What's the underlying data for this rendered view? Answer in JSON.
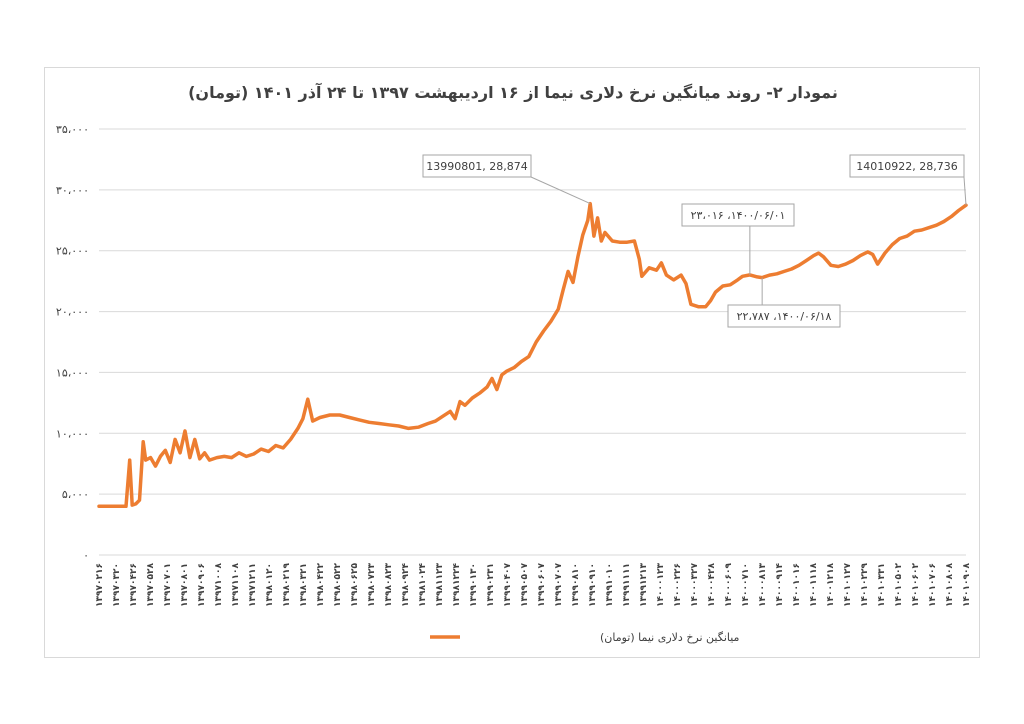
{
  "chart_data": {
    "type": "line",
    "title": "نمودار ۲- روند میانگین نرخ دلاری نیما از ۱۶ اردیبهشت ۱۳۹۷ تا ۲۴ آذر ۱۴۰۱ (تومان)",
    "xlabel": "",
    "ylabel": "",
    "ylim": [
      0,
      35000
    ],
    "grid": true,
    "legend_position": "bottom",
    "y_ticks": [
      {
        "value": 0,
        "label": "۰"
      },
      {
        "value": 5000,
        "label": "۵،۰۰۰"
      },
      {
        "value": 10000,
        "label": "۱۰،۰۰۰"
      },
      {
        "value": 15000,
        "label": "۱۵،۰۰۰"
      },
      {
        "value": 20000,
        "label": "۲۰،۰۰۰"
      },
      {
        "value": 25000,
        "label": "۲۵،۰۰۰"
      },
      {
        "value": 30000,
        "label": "۳۰،۰۰۰"
      },
      {
        "value": 35000,
        "label": "۳۵،۰۰۰"
      }
    ],
    "x_tick_labels": [
      "۱۳۹۷۰۲۱۶",
      "۱۳۹۷۰۳۲۰",
      "۱۳۹۷۰۴۲۶",
      "۱۳۹۷۰۵۲۸",
      "۱۳۹۷۰۷۰۱",
      "۱۳۹۷۰۸۰۱",
      "۱۳۹۷۰۹۰۶",
      "۱۳۹۷۱۰۰۸",
      "۱۳۹۷۱۱۰۸",
      "۱۳۹۷۱۲۱۱",
      "۱۳۹۸۰۱۲۰",
      "۱۳۹۸۰۲۱۹",
      "۱۳۹۸۰۳۲۱",
      "۱۳۹۸۰۴۲۲",
      "۱۳۹۸۰۵۲۲",
      "۱۳۹۸۰۶۲۵",
      "۱۳۹۸۰۷۲۳",
      "۱۳۹۸۰۸۲۳",
      "۱۳۹۸۰۹۲۴",
      "۱۳۹۸۱۰۲۴",
      "۱۳۹۸۱۱۲۳",
      "۱۳۹۸۱۲۲۴",
      "۱۳۹۹۰۱۳۰",
      "۱۳۹۹۰۲۳۱",
      "۱۳۹۹۰۴۰۷",
      "۱۳۹۹۰۵۰۷",
      "۱۳۹۹۰۶۰۷",
      "۱۳۹۹۰۷۰۷",
      "۱۳۹۹۰۸۱۰",
      "۱۳۹۹۰۹۱۰",
      "۱۳۹۹۱۰۱۰",
      "۱۳۹۹۱۱۱۱",
      "۱۳۹۹۱۲۱۳",
      "۱۴۰۰۰۱۲۳",
      "۱۴۰۰۰۲۲۶",
      "۱۴۰۰۰۳۲۷",
      "۱۴۰۰۰۴۲۸",
      "۱۴۰۰۰۶۰۹",
      "۱۴۰۰۰۷۱۰",
      "۱۴۰۰۰۸۱۳",
      "۱۴۰۰۰۹۱۴",
      "۱۴۰۰۱۰۱۶",
      "۱۴۰۰۱۱۱۸",
      "۱۴۰۰۱۲۱۸",
      "۱۴۰۱۰۱۲۷",
      "۱۴۰۱۰۲۲۹",
      "۱۴۰۱۰۳۳۱",
      "۱۴۰۱۰۵۰۲",
      "۱۴۰۱۰۶۰۲",
      "۱۴۰۱۰۷۰۶",
      "۱۴۰۱۰۸۰۸",
      "۱۴۰۱۰۹۰۸"
    ],
    "series": [
      {
        "name": "میانگین نرخ دلاری نیما (تومان)",
        "color": "#ED7D31",
        "points": [
          [
            0,
            4000
          ],
          [
            0.5,
            4000
          ],
          [
            1.1,
            4000
          ],
          [
            1.25,
            7800
          ],
          [
            1.35,
            4100
          ],
          [
            1.5,
            4200
          ],
          [
            1.65,
            4500
          ],
          [
            1.8,
            9300
          ],
          [
            1.9,
            7800
          ],
          [
            2.1,
            8000
          ],
          [
            2.3,
            7300
          ],
          [
            2.5,
            8100
          ],
          [
            2.7,
            8600
          ],
          [
            2.9,
            7600
          ],
          [
            3.1,
            9500
          ],
          [
            3.3,
            8400
          ],
          [
            3.5,
            10200
          ],
          [
            3.7,
            8000
          ],
          [
            3.9,
            9500
          ],
          [
            4.1,
            7900
          ],
          [
            4.3,
            8400
          ],
          [
            4.5,
            7800
          ],
          [
            4.8,
            8000
          ],
          [
            5.1,
            8100
          ],
          [
            5.4,
            8000
          ],
          [
            5.7,
            8400
          ],
          [
            6.0,
            8100
          ],
          [
            6.3,
            8300
          ],
          [
            6.6,
            8700
          ],
          [
            6.9,
            8500
          ],
          [
            7.2,
            9000
          ],
          [
            7.5,
            8800
          ],
          [
            7.8,
            9500
          ],
          [
            8.1,
            10400
          ],
          [
            8.3,
            11200
          ],
          [
            8.5,
            12800
          ],
          [
            8.7,
            11000
          ],
          [
            9.0,
            11300
          ],
          [
            9.4,
            11500
          ],
          [
            9.8,
            11500
          ],
          [
            10.2,
            11300
          ],
          [
            10.6,
            11100
          ],
          [
            11.0,
            10900
          ],
          [
            11.4,
            10800
          ],
          [
            11.8,
            10700
          ],
          [
            12.2,
            10600
          ],
          [
            12.6,
            10400
          ],
          [
            13.0,
            10500
          ],
          [
            13.4,
            10800
          ],
          [
            13.7,
            11000
          ],
          [
            14.0,
            11400
          ],
          [
            14.3,
            11800
          ],
          [
            14.5,
            11200
          ],
          [
            14.7,
            12600
          ],
          [
            14.9,
            12300
          ],
          [
            15.2,
            12900
          ],
          [
            15.5,
            13300
          ],
          [
            15.8,
            13800
          ],
          [
            16.0,
            14500
          ],
          [
            16.2,
            13600
          ],
          [
            16.4,
            14800
          ],
          [
            16.6,
            15100
          ],
          [
            16.9,
            15400
          ],
          [
            17.2,
            15900
          ],
          [
            17.5,
            16300
          ],
          [
            17.8,
            17500
          ],
          [
            18.1,
            18400
          ],
          [
            18.4,
            19200
          ],
          [
            18.7,
            20200
          ],
          [
            18.9,
            21800
          ],
          [
            19.1,
            23300
          ],
          [
            19.3,
            22400
          ],
          [
            19.5,
            24500
          ],
          [
            19.7,
            26300
          ],
          [
            19.9,
            27500
          ],
          [
            20.0,
            28874
          ],
          [
            20.15,
            26200
          ],
          [
            20.3,
            27700
          ],
          [
            20.45,
            25800
          ],
          [
            20.6,
            26500
          ],
          [
            20.9,
            25800
          ],
          [
            21.2,
            25700
          ],
          [
            21.5,
            25700
          ],
          [
            21.8,
            25800
          ],
          [
            22.0,
            24300
          ],
          [
            22.1,
            22900
          ],
          [
            22.4,
            23600
          ],
          [
            22.7,
            23400
          ],
          [
            22.9,
            24000
          ],
          [
            23.1,
            23000
          ],
          [
            23.4,
            22600
          ],
          [
            23.7,
            23000
          ],
          [
            23.9,
            22300
          ],
          [
            24.1,
            20600
          ],
          [
            24.4,
            20400
          ],
          [
            24.7,
            20400
          ],
          [
            24.9,
            20900
          ],
          [
            25.1,
            21600
          ],
          [
            25.4,
            22100
          ],
          [
            25.7,
            22200
          ],
          [
            26.0,
            22600
          ],
          [
            26.2,
            22900
          ],
          [
            26.5,
            23016
          ],
          [
            26.8,
            22850
          ],
          [
            27.0,
            22787
          ],
          [
            27.3,
            23000
          ],
          [
            27.6,
            23100
          ],
          [
            27.9,
            23300
          ],
          [
            28.2,
            23500
          ],
          [
            28.5,
            23800
          ],
          [
            28.8,
            24200
          ],
          [
            29.1,
            24600
          ],
          [
            29.3,
            24800
          ],
          [
            29.5,
            24500
          ],
          [
            29.8,
            23800
          ],
          [
            30.1,
            23700
          ],
          [
            30.4,
            23900
          ],
          [
            30.7,
            24200
          ],
          [
            31.0,
            24600
          ],
          [
            31.3,
            24900
          ],
          [
            31.5,
            24700
          ],
          [
            31.7,
            23900
          ],
          [
            32.0,
            24800
          ],
          [
            32.3,
            25500
          ],
          [
            32.6,
            26000
          ],
          [
            32.9,
            26200
          ],
          [
            33.2,
            26600
          ],
          [
            33.5,
            26700
          ],
          [
            33.8,
            26900
          ],
          [
            34.1,
            27100
          ],
          [
            34.4,
            27400
          ],
          [
            34.7,
            27800
          ],
          [
            35.0,
            28300
          ],
          [
            35.3,
            28736
          ]
        ]
      }
    ],
    "annotations": [
      {
        "label": "13990801, 28,874"
      },
      {
        "label": "۲۳،۰۱۶ ،۱۴۰۰/۰۶/۰۱"
      },
      {
        "label": "۲۲،۷۸۷ ،۱۴۰۰/۰۶/۱۸"
      },
      {
        "label": "14010922, 28,736"
      }
    ]
  }
}
